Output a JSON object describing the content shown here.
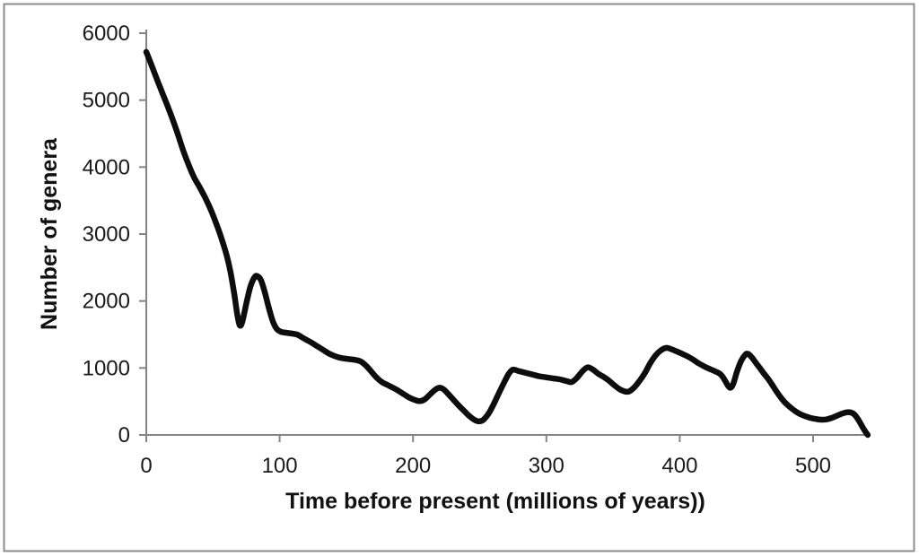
{
  "figure": {
    "background_color": "#ffffff",
    "border_color": "#8c8c8c",
    "axis_color": "#848484",
    "text_color": "#1a1a1a",
    "line_color": "#0d0d0d"
  },
  "chart_data": {
    "type": "line",
    "title": "",
    "xlabel": "Time before present (millions of years))",
    "ylabel": "Number of genera",
    "xlim": [
      0,
      541
    ],
    "ylim": [
      0,
      6000
    ],
    "x_ticks": [
      0,
      100,
      200,
      300,
      400,
      500
    ],
    "x_tick_labels": [
      "0",
      "100",
      "200",
      "300",
      "400",
      "500"
    ],
    "y_ticks": [
      0,
      1000,
      2000,
      3000,
      4000,
      5000,
      6000
    ],
    "y_tick_labels": [
      "0",
      "1000",
      "2000",
      "3000",
      "4000",
      "5000",
      "6000"
    ],
    "grid": false,
    "legend_position": "none",
    "series": [
      {
        "name": "Number of genera",
        "color": "#0d0d0d",
        "points": [
          [
            0,
            5720
          ],
          [
            4,
            5520
          ],
          [
            8,
            5310
          ],
          [
            12,
            5110
          ],
          [
            16,
            4910
          ],
          [
            20,
            4700
          ],
          [
            24,
            4470
          ],
          [
            28,
            4230
          ],
          [
            32,
            4020
          ],
          [
            36,
            3840
          ],
          [
            40,
            3700
          ],
          [
            44,
            3550
          ],
          [
            48,
            3380
          ],
          [
            52,
            3180
          ],
          [
            56,
            2960
          ],
          [
            60,
            2700
          ],
          [
            63,
            2450
          ],
          [
            66,
            2100
          ],
          [
            68,
            1830
          ],
          [
            70,
            1640
          ],
          [
            72,
            1690
          ],
          [
            75,
            1960
          ],
          [
            78,
            2210
          ],
          [
            81,
            2350
          ],
          [
            83,
            2375
          ],
          [
            86,
            2310
          ],
          [
            89,
            2120
          ],
          [
            92,
            1890
          ],
          [
            95,
            1690
          ],
          [
            98,
            1580
          ],
          [
            101,
            1540
          ],
          [
            105,
            1525
          ],
          [
            109,
            1515
          ],
          [
            113,
            1500
          ],
          [
            117,
            1455
          ],
          [
            121,
            1410
          ],
          [
            125,
            1365
          ],
          [
            129,
            1315
          ],
          [
            133,
            1265
          ],
          [
            137,
            1215
          ],
          [
            141,
            1180
          ],
          [
            145,
            1155
          ],
          [
            149,
            1140
          ],
          [
            153,
            1130
          ],
          [
            157,
            1120
          ],
          [
            161,
            1095
          ],
          [
            165,
            1030
          ],
          [
            169,
            940
          ],
          [
            173,
            850
          ],
          [
            177,
            785
          ],
          [
            181,
            745
          ],
          [
            185,
            705
          ],
          [
            189,
            660
          ],
          [
            193,
            610
          ],
          [
            197,
            560
          ],
          [
            201,
            525
          ],
          [
            205,
            505
          ],
          [
            209,
            535
          ],
          [
            213,
            610
          ],
          [
            217,
            680
          ],
          [
            220,
            705
          ],
          [
            223,
            680
          ],
          [
            227,
            600
          ],
          [
            231,
            510
          ],
          [
            235,
            425
          ],
          [
            239,
            345
          ],
          [
            243,
            270
          ],
          [
            247,
            215
          ],
          [
            250,
            203
          ],
          [
            253,
            230
          ],
          [
            257,
            330
          ],
          [
            261,
            480
          ],
          [
            265,
            650
          ],
          [
            269,
            810
          ],
          [
            272,
            920
          ],
          [
            275,
            975
          ],
          [
            279,
            955
          ],
          [
            283,
            935
          ],
          [
            287,
            915
          ],
          [
            291,
            895
          ],
          [
            295,
            875
          ],
          [
            300,
            860
          ],
          [
            305,
            845
          ],
          [
            310,
            830
          ],
          [
            315,
            805
          ],
          [
            319,
            790
          ],
          [
            323,
            855
          ],
          [
            327,
            950
          ],
          [
            331,
            1010
          ],
          [
            335,
            975
          ],
          [
            339,
            912
          ],
          [
            343,
            865
          ],
          [
            347,
            810
          ],
          [
            351,
            740
          ],
          [
            355,
            682
          ],
          [
            359,
            648
          ],
          [
            362,
            650
          ],
          [
            366,
            712
          ],
          [
            370,
            810
          ],
          [
            374,
            930
          ],
          [
            378,
            1075
          ],
          [
            382,
            1190
          ],
          [
            386,
            1265
          ],
          [
            390,
            1300
          ],
          [
            394,
            1278
          ],
          [
            398,
            1245
          ],
          [
            402,
            1210
          ],
          [
            406,
            1172
          ],
          [
            410,
            1125
          ],
          [
            414,
            1072
          ],
          [
            418,
            1028
          ],
          [
            422,
            990
          ],
          [
            426,
            955
          ],
          [
            430,
            915
          ],
          [
            433,
            845
          ],
          [
            436,
            740
          ],
          [
            438,
            705
          ],
          [
            440,
            755
          ],
          [
            443,
            950
          ],
          [
            446,
            1105
          ],
          [
            449,
            1195
          ],
          [
            451,
            1212
          ],
          [
            454,
            1160
          ],
          [
            457,
            1080
          ],
          [
            460,
            1000
          ],
          [
            463,
            920
          ],
          [
            466,
            845
          ],
          [
            469,
            760
          ],
          [
            472,
            665
          ],
          [
            475,
            580
          ],
          [
            478,
            505
          ],
          [
            481,
            445
          ],
          [
            484,
            395
          ],
          [
            487,
            350
          ],
          [
            490,
            315
          ],
          [
            494,
            280
          ],
          [
            498,
            255
          ],
          [
            502,
            238
          ],
          [
            506,
            228
          ],
          [
            510,
            232
          ],
          [
            514,
            255
          ],
          [
            518,
            288
          ],
          [
            522,
            320
          ],
          [
            525,
            337
          ],
          [
            528,
            338
          ],
          [
            531,
            305
          ],
          [
            534,
            225
          ],
          [
            537,
            120
          ],
          [
            539,
            55
          ],
          [
            541,
            0
          ]
        ]
      }
    ]
  }
}
